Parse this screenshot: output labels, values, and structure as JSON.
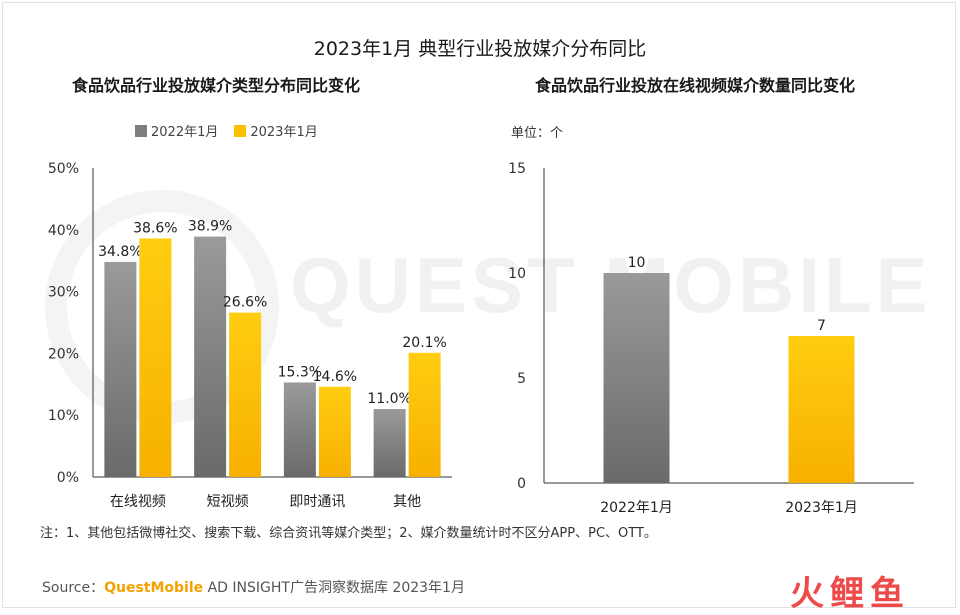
{
  "main_title": "2023年1月 典型行业投放媒介分布同比",
  "colors": {
    "series_2022": "#7d7d7d",
    "series_2023": "#ffbf00",
    "axis": "#333333"
  },
  "left": {
    "subtitle": "食品饮品行业投放媒介类型分布同比变化",
    "legend": [
      "2022年1月",
      "2023年1月"
    ]
  },
  "right": {
    "subtitle": "食品饮品行业投放在线视频媒介数量同比变化",
    "unit": "单位：个"
  },
  "note": "注：1、其他包括微博社交、搜索下载、综合资讯等媒介类型；2、媒介数量统计时不区分APP、PC、OTT。",
  "source": {
    "prefix": "Source：",
    "brand": "QuestMobile",
    "rest": " AD INSIGHT广告洞察数据库 2023年1月"
  },
  "watermark": "QUEST MOBILE",
  "logo": "火鲤鱼",
  "chart_data": [
    {
      "type": "bar",
      "title": "食品饮品行业投放媒介类型分布同比变化",
      "categories": [
        "在线视频",
        "短视频",
        "即时通讯",
        "其他"
      ],
      "series": [
        {
          "name": "2022年1月",
          "values": [
            34.8,
            38.9,
            15.3,
            11.0
          ],
          "labels": [
            "34.8%",
            "38.9%",
            "15.3%",
            "11.0%"
          ]
        },
        {
          "name": "2023年1月",
          "values": [
            38.6,
            26.6,
            14.6,
            20.1
          ],
          "labels": [
            "38.6%",
            "26.6%",
            "14.6%",
            "20.1%"
          ]
        }
      ],
      "yticks": [
        "0%",
        "10%",
        "20%",
        "30%",
        "40%",
        "50%"
      ],
      "ylim": [
        0,
        50
      ],
      "legend_position": "top"
    },
    {
      "type": "bar",
      "title": "食品饮品行业投放在线视频媒介数量同比变化",
      "categories": [
        "2022年1月",
        "2023年1月"
      ],
      "values": [
        10,
        7
      ],
      "labels": [
        "10",
        "7"
      ],
      "yticks": [
        "0",
        "5",
        "10",
        "15"
      ],
      "ylim": [
        0,
        15
      ]
    }
  ]
}
